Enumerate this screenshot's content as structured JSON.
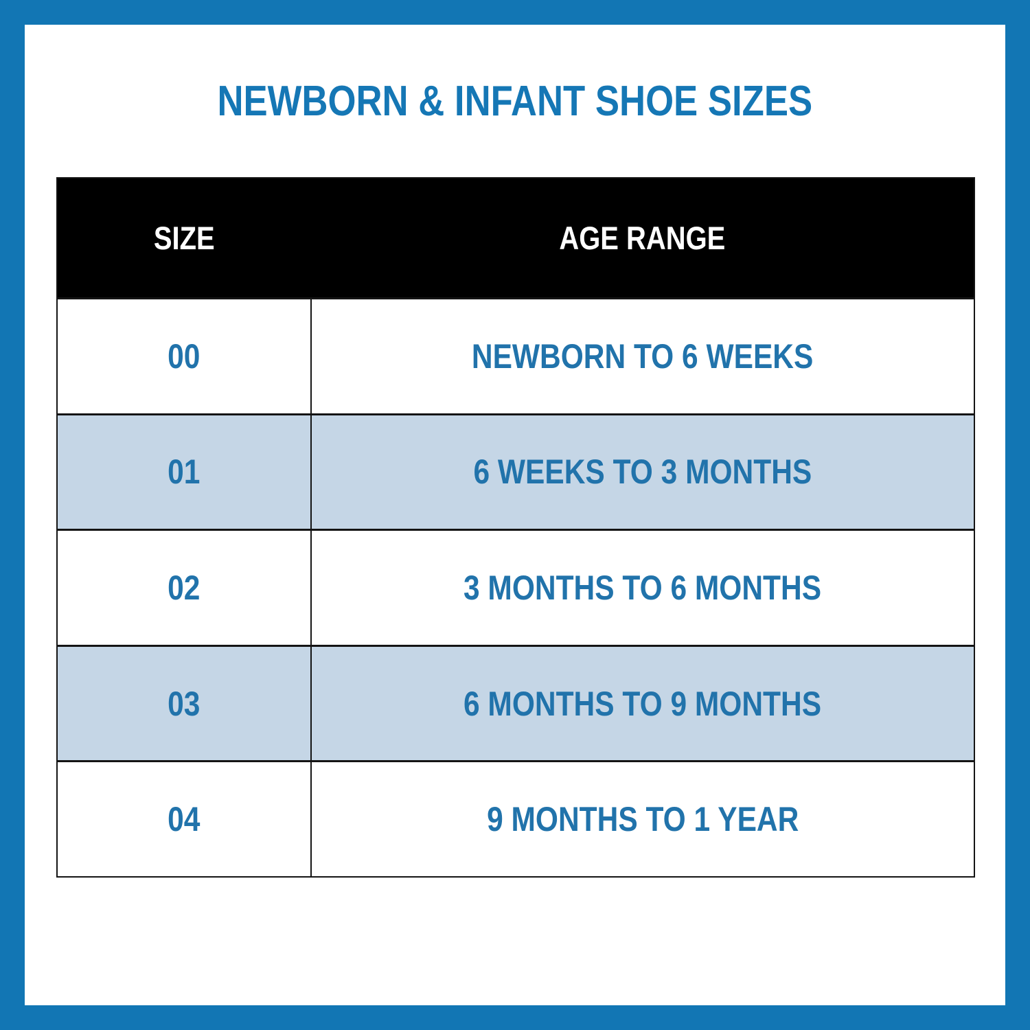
{
  "title": "NEWBORN & INFANT SHOE SIZES",
  "colors": {
    "frame_blue": "#1276B4",
    "title_blue": "#1577B5",
    "cell_text_blue": "#2173AB",
    "header_bg": "#000000",
    "header_text": "#FFFFFF",
    "row_bg": "#FFFFFF",
    "row_alt_bg": "#C5D6E6",
    "table_border": "#141414"
  },
  "table": {
    "headers": [
      "SIZE",
      "AGE RANGE"
    ],
    "rows": [
      {
        "size": "00",
        "age_range": "NEWBORN TO 6 WEEKS"
      },
      {
        "size": "01",
        "age_range": "6 WEEKS TO 3 MONTHS"
      },
      {
        "size": "02",
        "age_range": "3 MONTHS TO 6 MONTHS"
      },
      {
        "size": "03",
        "age_range": "6 MONTHS TO 9 MONTHS"
      },
      {
        "size": "04",
        "age_range": "9 MONTHS TO 1 YEAR"
      }
    ]
  },
  "chart_data": {
    "type": "table",
    "title": "NEWBORN & INFANT SHOE SIZES",
    "columns": [
      "SIZE",
      "AGE RANGE"
    ],
    "rows": [
      [
        "00",
        "NEWBORN TO 6 WEEKS"
      ],
      [
        "01",
        "6 WEEKS TO 3 MONTHS"
      ],
      [
        "02",
        "3 MONTHS TO 6 MONTHS"
      ],
      [
        "03",
        "6 MONTHS TO 9 MONTHS"
      ],
      [
        "04",
        "9 MONTHS TO 1 YEAR"
      ]
    ],
    "layout_hints": {
      "header_style": "black band, white uppercase text",
      "alternating_rows": "white / light blue starting with white",
      "text_alignment": "center"
    }
  }
}
